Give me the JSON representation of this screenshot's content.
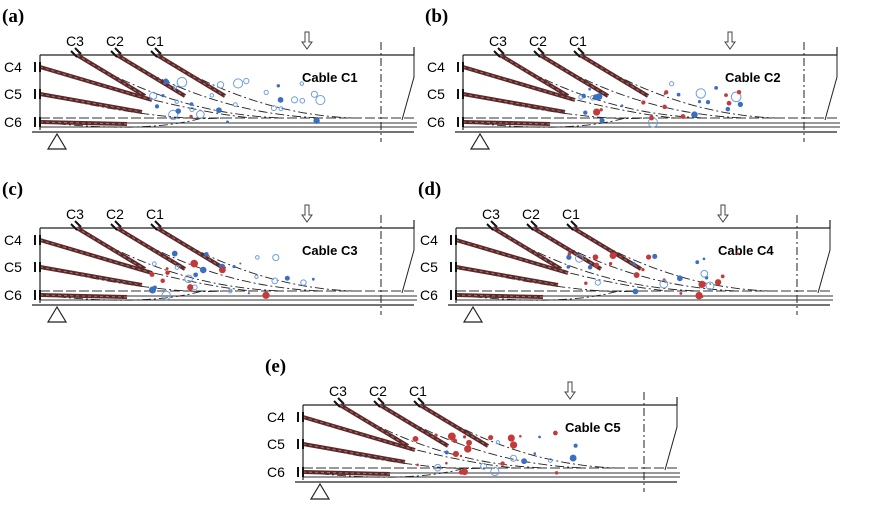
{
  "panels": [
    {
      "label": "(a)",
      "top_cables": [
        "C3",
        "C2",
        "C1"
      ],
      "left_cables": [
        "C4",
        "C5",
        "C6"
      ],
      "title": "Cable C1"
    },
    {
      "label": "(b)",
      "top_cables": [
        "C3",
        "C2",
        "C1"
      ],
      "left_cables": [
        "C4",
        "C5",
        "C6"
      ],
      "title": "Cable C2"
    },
    {
      "label": "(c)",
      "top_cables": [
        "C3",
        "C2",
        "C1"
      ],
      "left_cables": [
        "C4",
        "C5",
        "C6"
      ],
      "title": "Cable C3"
    },
    {
      "label": "(d)",
      "top_cables": [
        "C3",
        "C2",
        "C1"
      ],
      "left_cables": [
        "C4",
        "C5",
        "C6"
      ],
      "title": "Cable C4"
    },
    {
      "label": "(e)",
      "top_cables": [
        "C3",
        "C2",
        "C1"
      ],
      "left_cables": [
        "C4",
        "C5",
        "C6"
      ],
      "title": "Cable C5"
    }
  ]
}
